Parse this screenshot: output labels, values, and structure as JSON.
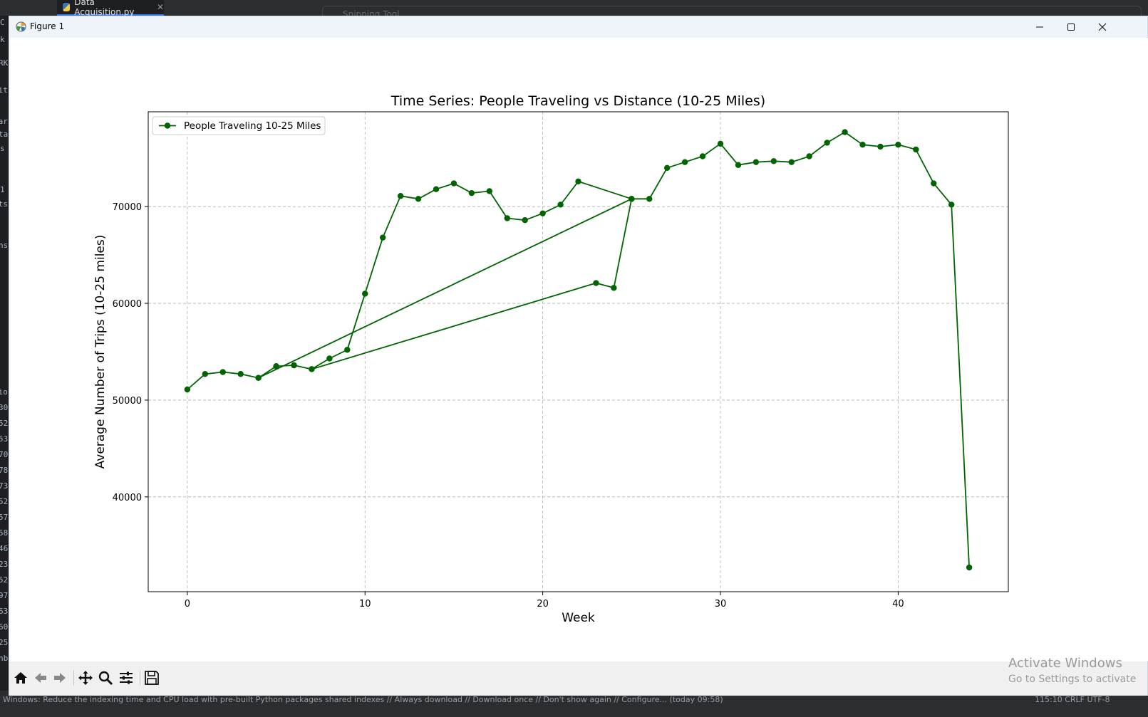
{
  "ide": {
    "active_tab": "Data Acquisition.py",
    "snipping_tab": "Snipping Tool",
    "status_text": "Windows: Reduce the indexing time and CPU load with pre-built Python packages shared indexes // Always download // Download once // Don't show again // Configure... (today 09:58)",
    "status_right": "115:10  CRLF  UTF-8",
    "left_fragments": [
      "C",
      "k",
      "RK",
      "sit",
      "tar",
      "ta",
      "s",
      "1",
      "cts",
      "ns",
      "tio",
      "30",
      "52",
      "53",
      "70",
      "78",
      "73",
      "52",
      "57",
      "58",
      "46",
      "23",
      "52",
      "97",
      "63",
      "60",
      "25",
      "nb"
    ]
  },
  "window": {
    "title": "Figure 1",
    "minimize_glyph": "—",
    "maximize_glyph": "☐",
    "close_glyph": "✕"
  },
  "toolbar": {
    "icons": [
      "home-icon",
      "back-icon",
      "forward-icon",
      "pan-icon",
      "zoom-icon",
      "configure-subplots-icon",
      "save-icon"
    ]
  },
  "watermark": {
    "line1": "Activate Windows",
    "line2": "Go to Settings to activate"
  },
  "chart_data": {
    "type": "line",
    "title": "Time Series: People Traveling vs Distance (10-25 Miles)",
    "xlabel": "Week",
    "ylabel": "Average Number of Trips (10-25 miles)",
    "xlim": [
      -2.2,
      46.2
    ],
    "ylim": [
      30200,
      79800
    ],
    "xticks": [
      0,
      10,
      20,
      30,
      40
    ],
    "yticks": [
      40000,
      50000,
      60000,
      70000
    ],
    "grid": true,
    "legend_position": "upper left",
    "series": [
      {
        "name": "People Traveling 10-25 Miles",
        "color": "#006400",
        "marker": "circle",
        "x": [
          0,
          1,
          2,
          3,
          4,
          5,
          6,
          7,
          8,
          9,
          10,
          11,
          12,
          13,
          14,
          15,
          16,
          17,
          18,
          19,
          20,
          21,
          22,
          25,
          4,
          5,
          6,
          7,
          23,
          24,
          25,
          26,
          27,
          28,
          29,
          30,
          31,
          32,
          33,
          34,
          35,
          36,
          37,
          38,
          39,
          40,
          41,
          42,
          43,
          44
        ],
        "y": [
          51100,
          52700,
          52900,
          52700,
          52300,
          53500,
          53600,
          53200,
          54300,
          55200,
          61000,
          66800,
          71100,
          70800,
          71800,
          72400,
          71400,
          71600,
          68800,
          68600,
          69300,
          70200,
          72600,
          70800,
          52300,
          53500,
          53600,
          53200,
          62100,
          61600,
          70800,
          70800,
          74000,
          74600,
          75200,
          76500,
          74300,
          74600,
          74700,
          74600,
          75200,
          76600,
          77700,
          76400,
          76200,
          76400,
          75900,
          72400,
          70200,
          32700
        ]
      }
    ]
  }
}
